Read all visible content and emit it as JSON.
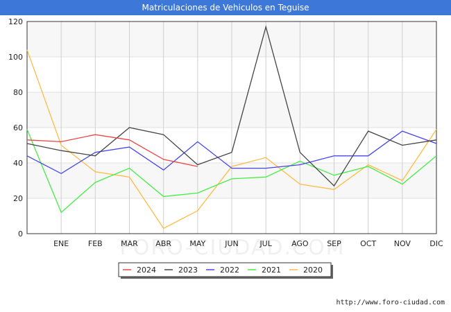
{
  "chart_data": {
    "type": "line",
    "title": "Matriculaciones de Vehiculos en Teguise",
    "categories": [
      "",
      "ENE",
      "FEB",
      "MAR",
      "ABR",
      "MAY",
      "JUN",
      "JUL",
      "AGO",
      "SEP",
      "OCT",
      "NOV",
      "DIC"
    ],
    "ylim": [
      0,
      120
    ],
    "yticks": [
      0,
      20,
      40,
      60,
      80,
      100,
      120
    ],
    "xlabel": "",
    "ylabel": "",
    "grid": true,
    "legend_position": "bottom",
    "series": [
      {
        "name": "2024",
        "color": "#ee4444",
        "values": [
          53,
          52,
          56,
          53,
          42,
          38,
          null,
          null,
          null,
          null,
          null,
          null,
          null
        ]
      },
      {
        "name": "2023",
        "color": "#444444",
        "values": [
          51,
          47,
          44,
          60,
          56,
          39,
          46,
          117,
          46,
          27,
          58,
          50,
          53
        ]
      },
      {
        "name": "2022",
        "color": "#4444ee",
        "values": [
          44,
          34,
          46,
          49,
          36,
          52,
          37,
          37,
          39,
          44,
          44,
          58,
          51
        ]
      },
      {
        "name": "2021",
        "color": "#44ee44",
        "values": [
          59,
          12,
          29,
          37,
          21,
          23,
          31,
          32,
          41,
          33,
          38,
          28,
          44
        ]
      },
      {
        "name": "2020",
        "color": "#ffbb44",
        "values": [
          104,
          50,
          35,
          32,
          3,
          13,
          38,
          43,
          28,
          25,
          39,
          30,
          59
        ]
      }
    ],
    "watermark": "FORO-CIUDAD.COM"
  },
  "footer": {
    "url": "http://www.foro-ciudad.com"
  }
}
